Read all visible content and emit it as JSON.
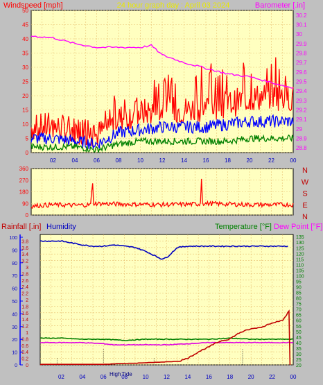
{
  "header": {
    "left_label": "Windspeed [mph]",
    "title": "24 hour graph day : April 03 2024",
    "right_label": "Barometer [.in]"
  },
  "direction_labels": [
    "N",
    "W",
    "S",
    "E",
    "N"
  ],
  "bottom_header": {
    "rainfall_label": "Rainfall [.in]",
    "humidity_label": "Humidity",
    "temperature_label": "Temperature [°F]",
    "dewpoint_label": "Dew Point [°F]"
  },
  "markers": {
    "high": "High",
    "tide": "Tide"
  },
  "colors": {
    "background": "#c0c0c0",
    "plot_bg": "#ffffc0",
    "grid": "#e8c070",
    "wind": "#ff0000",
    "gust": "#0000ff",
    "avg": "#008000",
    "barometer": "#ff00ff",
    "humidity": "#0000c0",
    "rain": "#c00000",
    "temperature": "#008000",
    "dewpoint": "#e000e0"
  },
  "chart_data": [
    {
      "type": "line",
      "title": "24 hour graph day : April 03 2024",
      "x_ticks": [
        "02",
        "04",
        "06",
        "08",
        "10",
        "12",
        "14",
        "16",
        "18",
        "20",
        "22",
        "00"
      ],
      "x_range_hours": [
        0,
        24
      ],
      "ylabel": "Windspeed [mph]",
      "ylim": [
        0,
        50
      ],
      "y_ticks": [
        0,
        5,
        10,
        15,
        20,
        25,
        30,
        35,
        40,
        45,
        50
      ],
      "y2label": "Barometer [.in]",
      "y2lim": [
        28.75,
        30.25
      ],
      "y2_ticks": [
        "28.8",
        "28.9",
        "29",
        "29.1",
        "29.2",
        "29.3",
        "29.4",
        "29.5",
        "29.6",
        "29.7",
        "29.8",
        "29.9",
        "30",
        "30.1",
        "30.2"
      ],
      "series": [
        {
          "role": "wind",
          "x": [
            0,
            2,
            4,
            6,
            7,
            8,
            10,
            12,
            14,
            16,
            18,
            20,
            22,
            24
          ],
          "values": [
            9,
            9,
            8,
            6,
            9,
            12,
            14,
            15,
            15,
            16,
            17,
            19,
            20,
            19
          ]
        },
        {
          "role": "wind-peaks",
          "x": [
            0,
            2,
            4,
            6,
            7,
            8,
            10,
            12,
            14,
            16,
            18,
            20,
            22,
            24
          ],
          "values": [
            15,
            14,
            15,
            10,
            16,
            23,
            23,
            28,
            29,
            31,
            33,
            33,
            37,
            29
          ]
        },
        {
          "role": "gust",
          "x": [
            0,
            2,
            4,
            6,
            7,
            8,
            10,
            12,
            14,
            16,
            18,
            20,
            22,
            24
          ],
          "values": [
            5,
            5,
            4,
            3,
            5,
            7,
            8,
            9,
            9,
            9,
            10,
            11,
            11,
            11
          ]
        },
        {
          "role": "avg",
          "x": [
            0,
            2,
            4,
            6,
            7,
            8,
            10,
            12,
            14,
            16,
            18,
            20,
            22,
            24
          ],
          "values": [
            2,
            2,
            2,
            1,
            2,
            3,
            4,
            4,
            4,
            4,
            4,
            5,
            5,
            5
          ]
        },
        {
          "role": "barometer",
          "axis": "y2",
          "x": [
            0,
            2,
            4,
            6,
            8,
            10,
            11,
            12,
            14,
            16,
            18,
            20,
            22,
            24
          ],
          "values": [
            29.98,
            29.96,
            29.9,
            29.86,
            29.86,
            29.86,
            29.88,
            29.78,
            29.7,
            29.64,
            29.58,
            29.55,
            29.49,
            29.43
          ]
        }
      ]
    },
    {
      "type": "line",
      "title": "",
      "ylabel": "",
      "ylim": [
        0,
        360
      ],
      "y_ticks": [
        0,
        90,
        180,
        270,
        360
      ],
      "series": [
        {
          "role": "wind-direction",
          "x": [
            0,
            2,
            4,
            5.5,
            5.6,
            5.7,
            8,
            12,
            15.5,
            15.6,
            15.7,
            18,
            20,
            24
          ],
          "values": [
            70,
            80,
            75,
            80,
            315,
            90,
            85,
            80,
            85,
            280,
            90,
            85,
            80,
            80
          ]
        }
      ]
    },
    {
      "type": "line",
      "title": "",
      "ylabel": "Rainfall [.in]",
      "ylim": [
        0,
        4.0
      ],
      "y_ticks": [
        "0",
        "0.2",
        "0.4",
        "0.6",
        "0.8",
        "1",
        "1.2",
        "1.4",
        "1.6",
        "1.8",
        "2",
        "2.2",
        "2.4",
        "2.6",
        "2.8",
        "3",
        "3.2",
        "3.4",
        "3.6",
        "3.8"
      ],
      "humidity_ticks": [
        0,
        10,
        20,
        30,
        40,
        50,
        60,
        70,
        80,
        90,
        100
      ],
      "y2label": "Temperature [°F]",
      "y2lim": [
        20,
        137
      ],
      "y2_ticks": [
        20,
        25,
        30,
        35,
        40,
        45,
        50,
        55,
        60,
        65,
        70,
        75,
        80,
        85,
        90,
        95,
        100,
        105,
        110,
        115,
        120,
        125,
        130,
        135
      ],
      "series": [
        {
          "role": "humidity",
          "name": "Humidity",
          "x": [
            0,
            2,
            4,
            5,
            6,
            7,
            8,
            9,
            10,
            11,
            11.5,
            12,
            13,
            14,
            16,
            18,
            20,
            22,
            23.5
          ],
          "values": [
            97,
            97,
            94,
            93,
            93,
            94,
            93,
            92,
            89,
            85,
            83,
            84,
            92,
            93,
            93,
            93,
            93,
            93,
            93
          ]
        },
        {
          "role": "rain",
          "name": "Rainfall [.in]",
          "x": [
            0,
            4,
            6,
            7,
            8,
            10,
            12,
            13,
            14,
            15,
            16,
            17,
            18,
            19,
            20,
            21,
            22,
            23,
            23.6,
            23.7
          ],
          "values": [
            0,
            0,
            0,
            0.02,
            0.03,
            0.05,
            0.08,
            0.1,
            0.2,
            0.4,
            0.55,
            0.72,
            0.8,
            1.0,
            1.1,
            1.15,
            1.3,
            1.35,
            1.65,
            0
          ]
        },
        {
          "role": "temperature",
          "name": "Temperature [°F]",
          "axis": "y2",
          "x": [
            0,
            2,
            4,
            6,
            8,
            10,
            12,
            14,
            16,
            18,
            20,
            22,
            24
          ],
          "values": [
            44,
            44,
            43,
            43,
            42,
            43,
            43,
            43,
            43,
            44,
            43,
            43,
            43
          ]
        },
        {
          "role": "dewpoint",
          "name": "Dew Point [°F]",
          "axis": "y2",
          "x": [
            0,
            2,
            4,
            6,
            7,
            8,
            10,
            12,
            14,
            16,
            18,
            20,
            22,
            24
          ],
          "values": [
            40,
            40,
            40,
            39,
            38,
            38,
            38,
            38,
            39,
            40,
            40,
            40,
            40,
            40
          ]
        }
      ]
    }
  ]
}
